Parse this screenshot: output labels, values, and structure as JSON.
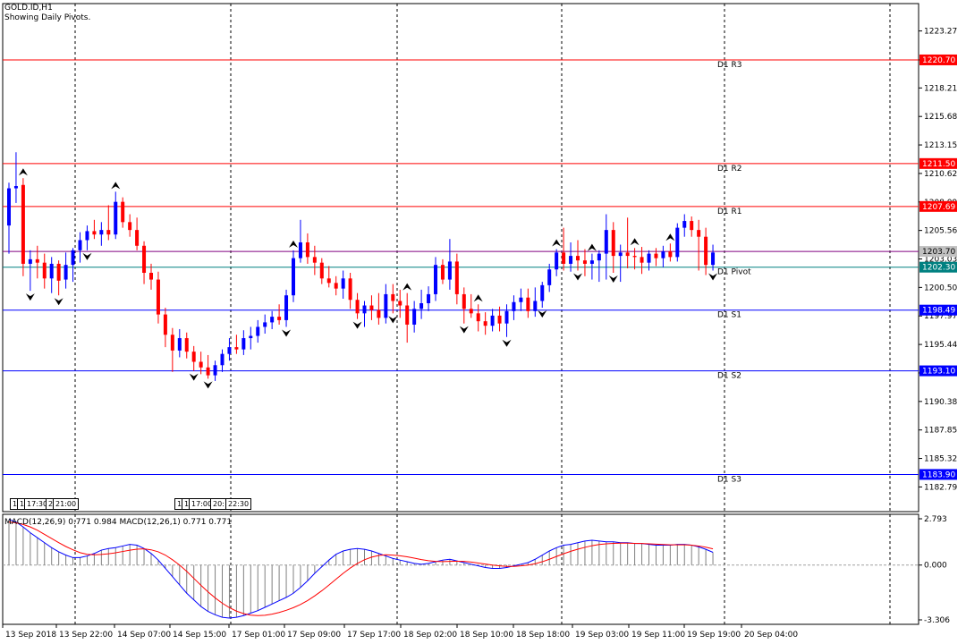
{
  "header": {
    "symbol": "GOLD.ID,H1",
    "subtitle": "Showing Daily Pivots."
  },
  "macd": {
    "label": "MACD(12,26,9) 0.771 0.984 MACD(12,26,1) 0.771 0.771",
    "axis_ticks": [
      "2.793",
      "0.000",
      "-3.306"
    ]
  },
  "time_boxes": [
    "1",
    "1",
    "17:30",
    "2",
    "21:00",
    "1",
    "1",
    "17:00",
    "20:",
    "22:30"
  ],
  "colors": {
    "bull": "#0000ff",
    "bear": "#ff0000",
    "resistance": "#ff0000",
    "support": "#0000ff",
    "pivot": "#008080",
    "current": "#800080",
    "macd_main": "#0000ff",
    "macd_signal": "#ff0000",
    "histogram": "#808080"
  },
  "chart_data": {
    "type": "candlestick",
    "ylim": [
      1180.6,
      1225.7
    ],
    "price_ticks": [
      "1223.27",
      "1220.70",
      "1218.21",
      "1215.68",
      "1213.15",
      "1210.62",
      "1208.09",
      "1205.56",
      "1203.03",
      "1200.50",
      "1197.97",
      "1195.44",
      "1192.91",
      "1190.38",
      "1187.85",
      "1185.32",
      "1182.79"
    ],
    "time_labels": [
      "13 Sep 2018",
      "13 Sep 22:00",
      "14 Sep 07:00",
      "14 Sep 15:00",
      "17 Sep 01:00",
      "17 Sep 09:00",
      "17 Sep 17:00",
      "18 Sep 02:00",
      "18 Sep 10:00",
      "18 Sep 18:00",
      "19 Sep 03:00",
      "19 Sep 11:00",
      "19 Sep 19:00",
      "20 Sep 04:00"
    ],
    "pivot_levels": [
      {
        "name": "D1 R3",
        "value": 1220.7,
        "label": "1220.70",
        "kind": "resistance"
      },
      {
        "name": "D1 R2",
        "value": 1211.5,
        "label": "1211.50",
        "kind": "resistance"
      },
      {
        "name": "D1 R1",
        "value": 1207.69,
        "label": "1207.69",
        "kind": "resistance"
      },
      {
        "name": "D1 Pivot",
        "value": 1202.3,
        "label": "1202.30",
        "kind": "pivot"
      },
      {
        "name": "D1 S1",
        "value": 1198.49,
        "label": "1198.49",
        "kind": "support"
      },
      {
        "name": "D1 S2",
        "value": 1193.1,
        "label": "1193.10",
        "kind": "support"
      },
      {
        "name": "D1 S3",
        "value": 1183.9,
        "label": "1183.90",
        "kind": "support"
      }
    ],
    "current_price": {
      "value": 1203.7,
      "label": "1203.70"
    },
    "candles": [
      [
        1206.0,
        1209.8,
        1203.5,
        1209.3
      ],
      [
        1209.3,
        1212.5,
        1208.0,
        1209.5
      ],
      [
        1209.6,
        1210.2,
        1201.5,
        1202.6
      ],
      [
        1202.6,
        1203.8,
        1200.2,
        1203.0
      ],
      [
        1203.0,
        1204.2,
        1201.3,
        1202.7
      ],
      [
        1202.7,
        1203.5,
        1200.4,
        1201.3
      ],
      [
        1201.3,
        1203.2,
        1200.0,
        1202.6
      ],
      [
        1202.6,
        1202.9,
        1199.8,
        1201.1
      ],
      [
        1201.2,
        1203.6,
        1200.4,
        1202.5
      ],
      [
        1202.5,
        1204.0,
        1201.0,
        1203.8
      ],
      [
        1203.8,
        1205.4,
        1202.7,
        1204.7
      ],
      [
        1204.7,
        1206.0,
        1203.8,
        1205.5
      ],
      [
        1205.5,
        1206.5,
        1204.8,
        1205.2
      ],
      [
        1205.2,
        1206.3,
        1204.2,
        1205.6
      ],
      [
        1205.6,
        1207.8,
        1204.7,
        1205.2
      ],
      [
        1205.2,
        1209.0,
        1204.8,
        1208.1
      ],
      [
        1208.1,
        1208.5,
        1205.8,
        1206.3
      ],
      [
        1206.3,
        1207.0,
        1205.0,
        1205.6
      ],
      [
        1205.6,
        1206.7,
        1203.8,
        1204.2
      ],
      [
        1204.2,
        1204.6,
        1200.8,
        1201.8
      ],
      [
        1201.8,
        1202.6,
        1200.3,
        1201.2
      ],
      [
        1201.2,
        1201.9,
        1197.3,
        1198.1
      ],
      [
        1198.1,
        1198.7,
        1195.2,
        1196.3
      ],
      [
        1196.3,
        1196.9,
        1193.0,
        1194.9
      ],
      [
        1194.9,
        1196.8,
        1194.3,
        1196.0
      ],
      [
        1196.0,
        1196.5,
        1194.2,
        1194.8
      ],
      [
        1194.8,
        1195.3,
        1193.1,
        1193.9
      ],
      [
        1193.9,
        1194.8,
        1192.8,
        1193.4
      ],
      [
        1193.4,
        1194.5,
        1192.4,
        1192.7
      ],
      [
        1192.7,
        1194.0,
        1192.2,
        1193.6
      ],
      [
        1193.6,
        1195.0,
        1193.0,
        1194.6
      ],
      [
        1194.6,
        1196.0,
        1194.0,
        1195.2
      ],
      [
        1195.2,
        1196.3,
        1194.6,
        1195.0
      ],
      [
        1195.0,
        1196.7,
        1194.5,
        1196.0
      ],
      [
        1196.0,
        1197.0,
        1195.0,
        1196.2
      ],
      [
        1196.2,
        1197.6,
        1195.6,
        1197.0
      ],
      [
        1197.0,
        1198.1,
        1196.4,
        1197.4
      ],
      [
        1197.4,
        1198.4,
        1196.8,
        1197.9
      ],
      [
        1197.9,
        1199.0,
        1197.2,
        1197.6
      ],
      [
        1197.6,
        1200.3,
        1197.0,
        1199.8
      ],
      [
        1199.8,
        1203.8,
        1199.2,
        1203.1
      ],
      [
        1203.1,
        1206.5,
        1202.7,
        1204.5
      ],
      [
        1204.5,
        1205.3,
        1202.6,
        1203.2
      ],
      [
        1203.2,
        1204.2,
        1201.6,
        1202.7
      ],
      [
        1202.7,
        1203.1,
        1200.8,
        1201.3
      ],
      [
        1201.3,
        1202.4,
        1200.5,
        1200.9
      ],
      [
        1200.9,
        1201.5,
        1199.8,
        1200.4
      ],
      [
        1200.4,
        1202.0,
        1199.5,
        1201.3
      ],
      [
        1201.3,
        1201.8,
        1198.6,
        1199.4
      ],
      [
        1199.4,
        1200.0,
        1197.7,
        1198.2
      ],
      [
        1198.2,
        1199.3,
        1197.0,
        1198.9
      ],
      [
        1198.9,
        1199.8,
        1197.6,
        1198.5
      ],
      [
        1198.5,
        1200.0,
        1197.2,
        1197.8
      ],
      [
        1197.8,
        1200.8,
        1197.3,
        1199.9
      ],
      [
        1199.9,
        1200.8,
        1198.2,
        1199.3
      ],
      [
        1199.3,
        1200.3,
        1197.8,
        1198.9
      ],
      [
        1198.9,
        1200.0,
        1195.6,
        1197.2
      ],
      [
        1197.2,
        1199.3,
        1196.5,
        1198.6
      ],
      [
        1198.6,
        1200.3,
        1197.7,
        1199.1
      ],
      [
        1199.1,
        1200.6,
        1198.4,
        1199.9
      ],
      [
        1199.9,
        1203.2,
        1199.3,
        1202.5
      ],
      [
        1202.5,
        1203.0,
        1200.8,
        1201.2
      ],
      [
        1201.2,
        1204.8,
        1200.3,
        1202.8
      ],
      [
        1202.8,
        1203.5,
        1199.0,
        1199.9
      ],
      [
        1199.9,
        1200.5,
        1197.3,
        1198.6
      ],
      [
        1198.6,
        1199.9,
        1197.8,
        1198.2
      ],
      [
        1198.2,
        1199.0,
        1196.6,
        1197.5
      ],
      [
        1197.5,
        1198.3,
        1196.3,
        1197.1
      ],
      [
        1197.1,
        1198.6,
        1196.6,
        1198.0
      ],
      [
        1198.0,
        1198.8,
        1196.6,
        1197.3
      ],
      [
        1197.3,
        1199.0,
        1196.1,
        1198.4
      ],
      [
        1198.4,
        1199.8,
        1197.6,
        1199.2
      ],
      [
        1199.2,
        1200.4,
        1198.4,
        1199.6
      ],
      [
        1199.6,
        1200.4,
        1197.8,
        1198.4
      ],
      [
        1198.4,
        1200.5,
        1197.9,
        1199.3
      ],
      [
        1199.3,
        1201.0,
        1198.7,
        1200.7
      ],
      [
        1200.7,
        1202.6,
        1200.1,
        1202.1
      ],
      [
        1202.1,
        1203.9,
        1201.5,
        1203.6
      ],
      [
        1203.6,
        1205.8,
        1202.0,
        1202.6
      ],
      [
        1202.6,
        1204.5,
        1201.9,
        1203.3
      ],
      [
        1203.3,
        1204.7,
        1202.0,
        1202.9
      ],
      [
        1202.9,
        1203.9,
        1201.5,
        1202.6
      ],
      [
        1202.6,
        1203.5,
        1201.2,
        1202.9
      ],
      [
        1202.9,
        1203.8,
        1201.0,
        1203.5
      ],
      [
        1203.5,
        1207.0,
        1201.2,
        1205.6
      ],
      [
        1205.6,
        1206.3,
        1201.8,
        1203.3
      ],
      [
        1203.3,
        1204.3,
        1201.0,
        1203.6
      ],
      [
        1203.6,
        1206.7,
        1202.2,
        1203.3
      ],
      [
        1203.3,
        1204.0,
        1202.1,
        1203.2
      ],
      [
        1203.2,
        1204.1,
        1201.7,
        1202.7
      ],
      [
        1202.7,
        1203.8,
        1202.0,
        1203.5
      ],
      [
        1203.5,
        1204.0,
        1202.4,
        1203.1
      ],
      [
        1203.1,
        1204.2,
        1202.3,
        1203.7
      ],
      [
        1203.7,
        1204.4,
        1202.8,
        1203.2
      ],
      [
        1203.2,
        1206.2,
        1202.8,
        1205.8
      ],
      [
        1205.8,
        1207.0,
        1205.0,
        1206.4
      ],
      [
        1206.4,
        1206.8,
        1205.0,
        1205.6
      ],
      [
        1205.6,
        1206.5,
        1202.0,
        1205.0
      ],
      [
        1205.0,
        1205.8,
        1201.6,
        1202.5
      ],
      [
        1202.5,
        1204.3,
        1202.0,
        1203.6
      ]
    ],
    "fractal_up": [
      2,
      15,
      40,
      56,
      66,
      77,
      82,
      88,
      93
    ],
    "fractal_down": [
      3,
      7,
      11,
      26,
      28,
      39,
      49,
      54,
      64,
      70,
      75,
      80,
      85,
      99
    ],
    "macd_histogram": [
      2.75,
      2.6,
      2.3,
      1.95,
      1.65,
      1.35,
      1.05,
      0.8,
      0.6,
      0.45,
      0.45,
      0.55,
      0.7,
      0.9,
      1.0,
      1.05,
      1.15,
      1.25,
      1.2,
      1.0,
      0.7,
      0.3,
      -0.2,
      -0.7,
      -1.2,
      -1.7,
      -2.1,
      -2.5,
      -2.8,
      -3.0,
      -3.15,
      -3.2,
      -3.15,
      -3.05,
      -2.9,
      -2.75,
      -2.55,
      -2.35,
      -2.15,
      -1.95,
      -1.7,
      -1.35,
      -0.95,
      -0.5,
      -0.1,
      0.3,
      0.65,
      0.85,
      0.95,
      1.0,
      0.95,
      0.85,
      0.7,
      0.55,
      0.4,
      0.3,
      0.2,
      0.1,
      0.05,
      0.1,
      0.2,
      0.3,
      0.35,
      0.25,
      0.15,
      0.05,
      -0.05,
      -0.15,
      -0.2,
      -0.2,
      -0.15,
      -0.05,
      0.05,
      0.15,
      0.35,
      0.6,
      0.85,
      1.05,
      1.2,
      1.25,
      1.35,
      1.45,
      1.5,
      1.45,
      1.4,
      1.4,
      1.35,
      1.35,
      1.3,
      1.3,
      1.25,
      1.2,
      1.2,
      1.2,
      1.25,
      1.25,
      1.2,
      1.1,
      0.95,
      0.77
    ],
    "macd_signal": [
      2.6,
      2.55,
      2.45,
      2.3,
      2.1,
      1.85,
      1.6,
      1.35,
      1.12,
      0.92,
      0.75,
      0.65,
      0.62,
      0.64,
      0.68,
      0.74,
      0.82,
      0.9,
      0.96,
      0.98,
      0.92,
      0.8,
      0.6,
      0.32,
      0.0,
      -0.38,
      -0.8,
      -1.22,
      -1.62,
      -1.98,
      -2.3,
      -2.57,
      -2.78,
      -2.93,
      -3.02,
      -3.05,
      -3.03,
      -2.96,
      -2.86,
      -2.73,
      -2.57,
      -2.38,
      -2.14,
      -1.86,
      -1.55,
      -1.21,
      -0.85,
      -0.5,
      -0.18,
      0.1,
      0.32,
      0.48,
      0.58,
      0.62,
      0.6,
      0.56,
      0.5,
      0.42,
      0.33,
      0.26,
      0.22,
      0.21,
      0.22,
      0.23,
      0.22,
      0.18,
      0.12,
      0.06,
      0.0,
      -0.05,
      -0.08,
      -0.08,
      -0.05,
      0.0,
      0.08,
      0.2,
      0.35,
      0.52,
      0.68,
      0.83,
      0.96,
      1.07,
      1.17,
      1.24,
      1.28,
      1.31,
      1.32,
      1.32,
      1.31,
      1.3,
      1.28,
      1.26,
      1.24,
      1.22,
      1.22,
      1.22,
      1.2,
      1.15,
      1.08,
      0.98
    ]
  }
}
